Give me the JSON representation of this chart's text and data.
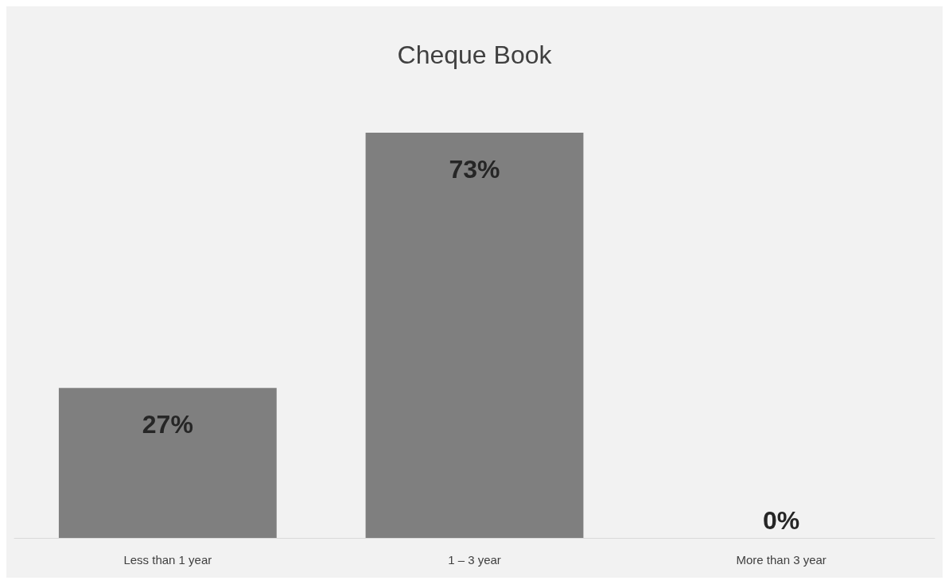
{
  "chart_data": {
    "type": "bar",
    "title": "Cheque Book",
    "categories": [
      "Less than 1 year",
      "1 – 3 year",
      "More than 3 year"
    ],
    "values": [
      27,
      73,
      0
    ],
    "value_labels": [
      "27%",
      "73%",
      "0%"
    ],
    "color": "#7f7f7f"
  }
}
